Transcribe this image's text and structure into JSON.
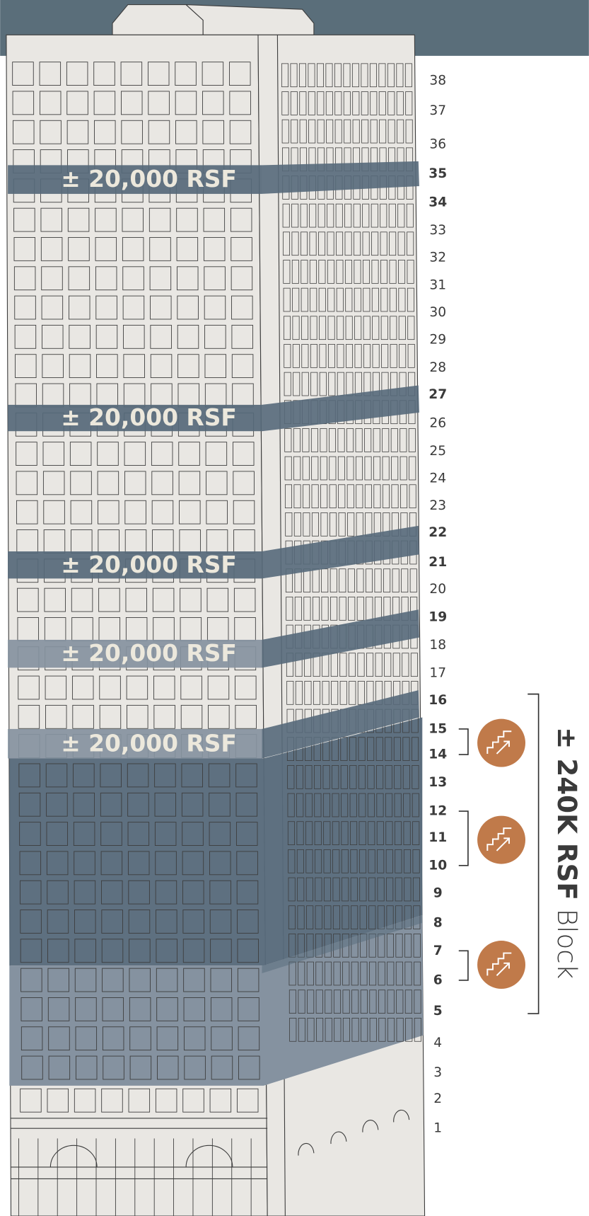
{
  "floors": [
    {
      "label": "38",
      "bold": false
    },
    {
      "label": "37",
      "bold": false
    },
    {
      "label": "36",
      "bold": false
    },
    {
      "label": "35",
      "bold": true
    },
    {
      "label": "34",
      "bold": true
    },
    {
      "label": "33",
      "bold": false
    },
    {
      "label": "32",
      "bold": false
    },
    {
      "label": "31",
      "bold": false
    },
    {
      "label": "30",
      "bold": false
    },
    {
      "label": "29",
      "bold": false
    },
    {
      "label": "28",
      "bold": false
    },
    {
      "label": "27",
      "bold": true
    },
    {
      "label": "26",
      "bold": false
    },
    {
      "label": "25",
      "bold": false
    },
    {
      "label": "24",
      "bold": false
    },
    {
      "label": "23",
      "bold": false
    },
    {
      "label": "22",
      "bold": true
    },
    {
      "label": "21",
      "bold": true
    },
    {
      "label": "20",
      "bold": false
    },
    {
      "label": "19",
      "bold": true
    },
    {
      "label": "18",
      "bold": false
    },
    {
      "label": "17",
      "bold": false
    },
    {
      "label": "16",
      "bold": true
    },
    {
      "label": "15",
      "bold": true
    },
    {
      "label": "14",
      "bold": true
    },
    {
      "label": "13",
      "bold": true
    },
    {
      "label": "12",
      "bold": true
    },
    {
      "label": "11",
      "bold": true
    },
    {
      "label": "10",
      "bold": true
    },
    {
      "label": "9",
      "bold": true
    },
    {
      "label": "8",
      "bold": true
    },
    {
      "label": "7",
      "bold": true
    },
    {
      "label": "6",
      "bold": true
    },
    {
      "label": "5",
      "bold": true
    },
    {
      "label": "4",
      "bold": false
    },
    {
      "label": "3",
      "bold": false
    },
    {
      "label": "2",
      "bold": false
    },
    {
      "label": "1",
      "bold": false
    }
  ],
  "bands": [
    "± 20,000 RSF",
    "± 20,000 RSF",
    "± 20,000 RSF",
    "± 20,000 RSF",
    "± 20,000 RSF"
  ],
  "block": {
    "amount": "± 240K RSF",
    "label": "Block"
  }
}
